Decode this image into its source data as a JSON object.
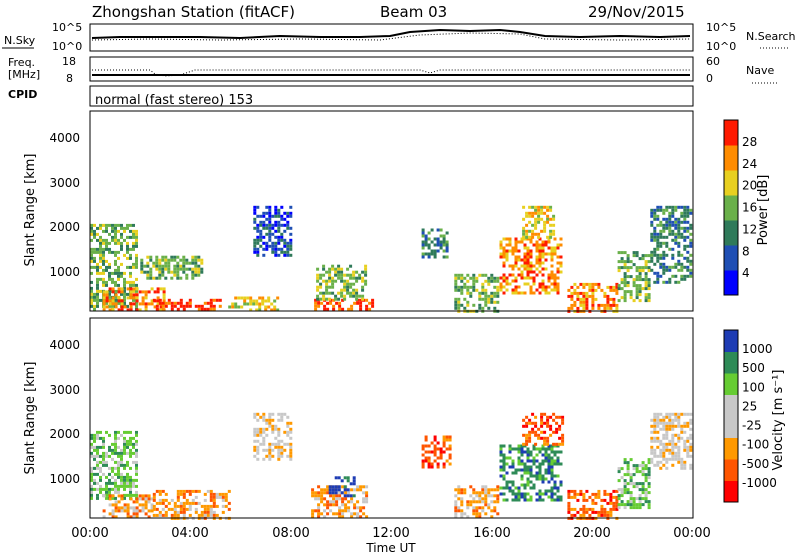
{
  "header": {
    "title": "Zhongshan Station (fitACF)",
    "beam": "Beam 03",
    "date": "29/Nov/2015"
  },
  "top_panels": {
    "nsky": {
      "label": "N.Sky",
      "ticks_left": [
        "10^5",
        "10^0"
      ],
      "ticks_right": [
        "10^5",
        "10^0"
      ],
      "right_label": "N.Search"
    },
    "freq": {
      "label_line1": "Freq.",
      "label_line2": "[MHz]",
      "ticks_left": [
        "18",
        "8"
      ],
      "ticks_right": [
        "60",
        "0"
      ],
      "right_label": "Nave"
    },
    "cpid": {
      "label": "CPID",
      "text": "normal (fast stereo) 153"
    }
  },
  "chart_data": [
    {
      "type": "heatmap",
      "name": "power",
      "ylabel": "Slant Range [km]",
      "y_ticks": [
        "4000",
        "3000",
        "2000",
        "1000"
      ],
      "ylim": [
        180,
        4590
      ],
      "xlim": [
        0,
        24
      ],
      "colorbar": {
        "label": "Power [dB]",
        "ticks": [
          "28",
          "24",
          "20",
          "16",
          "12",
          "8",
          "4"
        ],
        "colors": [
          "#0000ff",
          "#1f4fb4",
          "#2f7a5a",
          "#6ab04a",
          "#e8d020",
          "#ff8c00",
          "#ff1a00"
        ]
      },
      "approx_bins": [
        {
          "t0": 0.0,
          "t1": 1.8,
          "r0": 200,
          "r1": 2100,
          "level": 3
        },
        {
          "t0": 0.5,
          "t1": 3.0,
          "r0": 200,
          "r1": 700,
          "level": 5
        },
        {
          "t0": 2.5,
          "t1": 5.2,
          "r0": 200,
          "r1": 450,
          "level": 6
        },
        {
          "t0": 2.0,
          "t1": 4.5,
          "r0": 900,
          "r1": 1400,
          "level": 3
        },
        {
          "t0": 5.5,
          "t1": 7.5,
          "r0": 200,
          "r1": 500,
          "level": 4
        },
        {
          "t0": 6.5,
          "t1": 8.0,
          "r0": 1400,
          "r1": 2500,
          "level": 1
        },
        {
          "t0": 8.8,
          "t1": 11.2,
          "r0": 200,
          "r1": 450,
          "level": 6
        },
        {
          "t0": 9.0,
          "t1": 11.0,
          "r0": 450,
          "r1": 1200,
          "level": 3
        },
        {
          "t0": 13.2,
          "t1": 14.2,
          "r0": 1400,
          "r1": 2000,
          "level": 2
        },
        {
          "t0": 14.5,
          "t1": 16.2,
          "r0": 200,
          "r1": 1000,
          "level": 3
        },
        {
          "t0": 16.3,
          "t1": 18.8,
          "r0": 600,
          "r1": 1800,
          "level": 5
        },
        {
          "t0": 17.2,
          "t1": 18.5,
          "r0": 1800,
          "r1": 2500,
          "level": 4
        },
        {
          "t0": 19.0,
          "t1": 21.0,
          "r0": 200,
          "r1": 800,
          "level": 5
        },
        {
          "t0": 21.0,
          "t1": 22.2,
          "r0": 400,
          "r1": 1500,
          "level": 3
        },
        {
          "t0": 22.3,
          "t1": 23.9,
          "r0": 800,
          "r1": 2500,
          "level": 2
        }
      ]
    },
    {
      "type": "heatmap",
      "name": "velocity",
      "ylabel": "Slant Range [km]",
      "y_ticks": [
        "4000",
        "3000",
        "2000",
        "1000"
      ],
      "ylim": [
        180,
        4590
      ],
      "xlim": [
        0,
        24
      ],
      "colorbar": {
        "label": "Velocity [m s⁻¹]",
        "ticks": [
          "1000",
          "500",
          "100",
          "25",
          "-25",
          "-100",
          "-500",
          "-1000"
        ],
        "colors": [
          "#ff0000",
          "#ff5500",
          "#ff9900",
          "#c8c8c8",
          "#c8c8c8",
          "#66cc33",
          "#2e8b57",
          "#1e3cb4"
        ]
      },
      "approx_bins": [
        {
          "t0": 0.0,
          "t1": 1.8,
          "r0": 600,
          "r1": 2100,
          "level": 5
        },
        {
          "t0": 0.5,
          "t1": 2.5,
          "r0": 200,
          "r1": 700,
          "level": 2
        },
        {
          "t0": 2.5,
          "t1": 5.5,
          "r0": 200,
          "r1": 800,
          "level": 2
        },
        {
          "t0": 6.5,
          "t1": 8.0,
          "r0": 1500,
          "r1": 2500,
          "level": 3
        },
        {
          "t0": 8.8,
          "t1": 11.0,
          "r0": 200,
          "r1": 900,
          "level": 2
        },
        {
          "t0": 9.5,
          "t1": 10.5,
          "r0": 700,
          "r1": 1100,
          "level": 7
        },
        {
          "t0": 13.2,
          "t1": 14.3,
          "r0": 1300,
          "r1": 2000,
          "level": 1
        },
        {
          "t0": 14.5,
          "t1": 16.2,
          "r0": 200,
          "r1": 900,
          "level": 2
        },
        {
          "t0": 16.3,
          "t1": 18.8,
          "r0": 600,
          "r1": 1800,
          "level": 6
        },
        {
          "t0": 17.2,
          "t1": 18.8,
          "r0": 1800,
          "r1": 2500,
          "level": 1
        },
        {
          "t0": 19.0,
          "t1": 21.0,
          "r0": 200,
          "r1": 800,
          "level": 1
        },
        {
          "t0": 21.0,
          "t1": 22.2,
          "r0": 400,
          "r1": 1500,
          "level": 5
        },
        {
          "t0": 22.3,
          "t1": 23.9,
          "r0": 1300,
          "r1": 2500,
          "level": 3
        }
      ]
    }
  ],
  "x_axis": {
    "ticks": [
      "00:00",
      "04:00",
      "08:00",
      "12:00",
      "16:00",
      "20:00",
      "00:00"
    ],
    "label": "Time UT"
  }
}
